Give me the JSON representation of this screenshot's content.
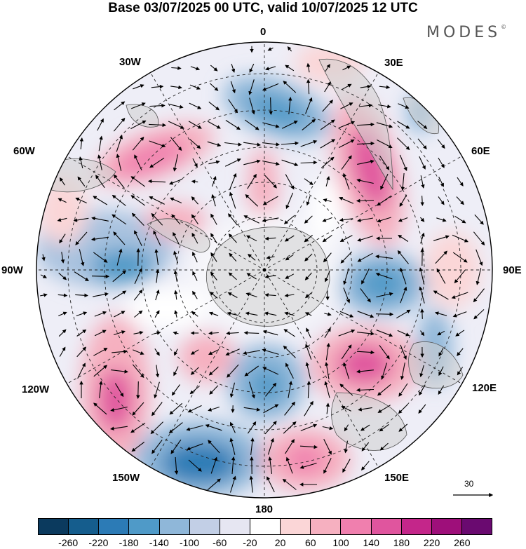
{
  "header": {
    "title": "Base 03/07/2025 00 UTC, valid 10/07/2025 12 UTC",
    "logo_text": "MODES",
    "logo_mark": "©"
  },
  "map": {
    "projection": "south-polar-stereographic",
    "longitude_labels": [
      "0",
      "30E",
      "60E",
      "90E",
      "120E",
      "150E",
      "180",
      "150W",
      "120W",
      "90W",
      "60W",
      "30W"
    ],
    "reference_vector": {
      "value": "30"
    }
  },
  "legend": {
    "ticks": [
      "-260",
      "-220",
      "-180",
      "-140",
      "-100",
      "-60",
      "-20",
      "20",
      "60",
      "100",
      "140",
      "180",
      "220",
      "260"
    ],
    "colors": [
      "#0b3a5e",
      "#155d8d",
      "#2c7bb6",
      "#4f9ac8",
      "#8fb7d9",
      "#c2cfe6",
      "#e6e6f2",
      "#ffffff",
      "#fbd6d7",
      "#f6b0c0",
      "#f07fae",
      "#e0559e",
      "#c4268a",
      "#9e0f7a",
      "#6a0a70"
    ]
  }
}
